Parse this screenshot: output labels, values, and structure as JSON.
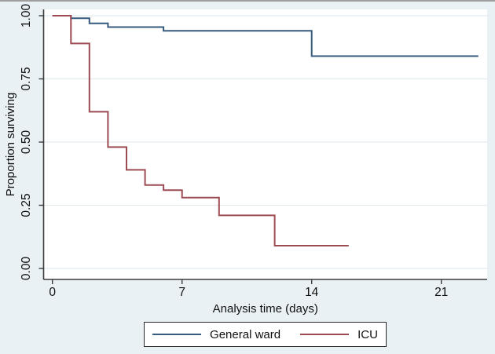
{
  "chart_data": {
    "type": "line",
    "subtype": "kaplan-meier-step-survival",
    "title": "",
    "xlabel": "Analysis time (days)",
    "ylabel": "Proportion surviving",
    "xlim": [
      0,
      23.5
    ],
    "ylim": [
      0,
      1
    ],
    "x_ticks": [
      0,
      7,
      14,
      21
    ],
    "y_ticks": [
      "0.00",
      "0.25",
      "0.50",
      "0.75",
      "1.00"
    ],
    "grid": true,
    "legend_position": "bottom-center-boxed",
    "series": [
      {
        "name": "General ward",
        "color": "#355a7e",
        "step_points": [
          [
            0,
            1.0
          ],
          [
            1,
            0.99
          ],
          [
            2,
            0.97
          ],
          [
            3,
            0.955
          ],
          [
            6,
            0.94
          ],
          [
            14,
            0.84
          ]
        ],
        "end_x": 23
      },
      {
        "name": "ICU",
        "color": "#9d4b53",
        "step_points": [
          [
            0,
            1.0
          ],
          [
            1,
            0.89
          ],
          [
            2,
            0.62
          ],
          [
            3,
            0.48
          ],
          [
            4,
            0.39
          ],
          [
            5,
            0.33
          ],
          [
            6,
            0.31
          ],
          [
            7,
            0.28
          ],
          [
            9,
            0.21
          ],
          [
            12,
            0.09
          ]
        ],
        "end_x": 16
      }
    ]
  },
  "colors": {
    "outer_background": "#eaf1f4",
    "plot_background": "#ffffff",
    "gridline": "#e2ebf0",
    "axis": "#3b3b3b",
    "text": "#111111",
    "legend_border": "#2a2a2a",
    "top_frame": "#9e9e9e"
  }
}
